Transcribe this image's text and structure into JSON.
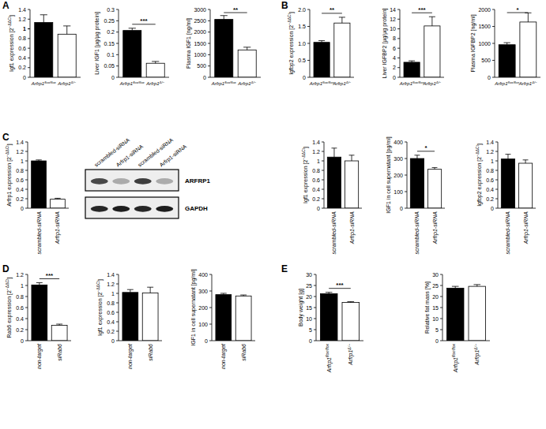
{
  "chart_data": [
    {
      "type": "bar",
      "title": "A",
      "categories": [
        "Arfrp1flox/flox",
        "Arfrp1Δ/−"
      ],
      "values": [
        1.13,
        0.89
      ],
      "errors": [
        0.16,
        0.17
      ],
      "colors": [
        "#000000",
        "#ffffff"
      ],
      "y_label": "Igf1 expression [2−ΔΔCt]",
      "ylim": [
        0,
        1.4
      ],
      "yticks": [
        0,
        0.2,
        0.4,
        0.6,
        0.8,
        1,
        {
          "value": 1,
          "label": "1"
        },
        1.2,
        1.4
      ],
      "annotations": []
    },
    {
      "type": "bar",
      "categories": [
        "Arfrp1flox/flox",
        "Arfrp1Δ/−"
      ],
      "values": [
        0.207,
        0.062
      ],
      "errors": [
        0.01,
        0.008
      ],
      "colors": [
        "#000000",
        "#ffffff"
      ],
      "y_label": "Liver IGF1 [µg/µg protein]",
      "ylim": [
        0,
        0.3
      ],
      "yticks": [
        0,
        0.05,
        0.1,
        0.15,
        0.2,
        0.25,
        0.3
      ],
      "annotations": [
        "***"
      ]
    },
    {
      "type": "bar",
      "categories": [
        "Arfrp1flox/flox",
        "Arfrp1Δ/−"
      ],
      "values": [
        2560,
        1210
      ],
      "errors": [
        170,
        120
      ],
      "colors": [
        "#000000",
        "#ffffff"
      ],
      "y_label": "Plasma IGF1 [ng/ml]",
      "ylim": [
        0,
        3000
      ],
      "yticks": [
        0,
        500,
        1000,
        1500,
        2000,
        2500,
        3000
      ],
      "annotations": [
        "**"
      ]
    },
    {
      "type": "bar",
      "title": "B",
      "categories": [
        "Arfrp1flox/flox",
        "Arfrp1Δ/−"
      ],
      "values": [
        1.03,
        1.6
      ],
      "errors": [
        0.05,
        0.17
      ],
      "colors": [
        "#000000",
        "#ffffff"
      ],
      "y_label": "Igfbp2 expression [2−ΔΔCt]",
      "ylim": [
        0,
        2
      ],
      "yticks": [
        0,
        0.5,
        {
          "value": 1,
          "label": "1.0"
        },
        1.5,
        {
          "value": 2,
          "label": "2.0"
        }
      ],
      "annotations": [
        "**"
      ]
    },
    {
      "type": "bar",
      "categories": [
        "Arfrp1flox/flox",
        "Arfrp1Δ/−"
      ],
      "values": [
        3.1,
        10.6
      ],
      "errors": [
        0.3,
        1.9
      ],
      "colors": [
        "#000000",
        "#ffffff"
      ],
      "y_label": "Liver IGFBP2 [µg/µg protein]",
      "ylim": [
        0,
        14
      ],
      "yticks": [
        0,
        2,
        4,
        6,
        8,
        10,
        12,
        14
      ],
      "annotations": [
        "***"
      ]
    },
    {
      "type": "bar",
      "categories": [
        "Arfrp1flox/flox",
        "Arfrp1Δ/−"
      ],
      "values": [
        960,
        1630
      ],
      "errors": [
        60,
        270
      ],
      "colors": [
        "#000000",
        "#ffffff"
      ],
      "y_label": "Plasma IGFBP2 [ng/ml]",
      "ylim": [
        0,
        2000
      ],
      "yticks": [
        0,
        500,
        1000,
        1500,
        2000
      ],
      "annotations": [
        "*"
      ]
    },
    {
      "type": "bar",
      "title": "C",
      "categories": [
        "scrambled-siRNA",
        "Arfrp1-siRNA"
      ],
      "values": [
        1.0,
        0.19
      ],
      "errors": [
        0.02,
        0.02
      ],
      "colors": [
        "#000000",
        "#ffffff"
      ],
      "y_label": "Arfrp1 expression [2−ΔΔCt]",
      "ylim": [
        0,
        1.4
      ],
      "yticks": [
        0,
        0.2,
        0.4,
        0.6,
        0.8,
        1,
        1.2,
        1.4
      ],
      "annotations": []
    },
    {
      "type": "blot",
      "categories": [
        "scrambled-siRNA",
        "Arfrp1-siRNA",
        "scrambled-siRNA",
        "Arfrp1-siRNA"
      ],
      "series": [
        {
          "name": "ARFRP1",
          "values": [
            0.75,
            0.3,
            0.8,
            0.3
          ]
        },
        {
          "name": "GAPDH",
          "values": [
            0.9,
            0.95,
            0.9,
            0.95
          ]
        }
      ]
    },
    {
      "type": "bar",
      "categories": [
        "scrambled-siRNA",
        "Arfrp1-siRNA"
      ],
      "values": [
        1.08,
        1.0
      ],
      "errors": [
        0.19,
        0.12
      ],
      "colors": [
        "#000000",
        "#ffffff"
      ],
      "y_label": "Igf1 expression [2−ΔΔCt]",
      "ylim": [
        0,
        1.4
      ],
      "yticks": [
        0,
        0.2,
        0.4,
        0.6,
        0.8,
        1,
        1.2,
        1.4
      ],
      "annotations": []
    },
    {
      "type": "bar",
      "categories": [
        "scrambled-siRNA",
        "Arfrp1-siRNA"
      ],
      "values": [
        300,
        235
      ],
      "errors": [
        20,
        10
      ],
      "colors": [
        "#000000",
        "#ffffff"
      ],
      "y_label": "IGF1 in cell supernatant [pg/ml]",
      "ylim": [
        0,
        400
      ],
      "yticks": [
        0,
        100,
        200,
        300,
        400
      ],
      "annotations": [
        "*"
      ]
    },
    {
      "type": "bar",
      "categories": [
        "scrambled-siRNA",
        "Arfrp1-siRNA"
      ],
      "values": [
        1.04,
        0.95
      ],
      "errors": [
        0.1,
        0.07
      ],
      "colors": [
        "#000000",
        "#ffffff"
      ],
      "y_label": "Igfbp2 expression [2−ΔΔCt]",
      "ylim": [
        0,
        1.4
      ],
      "yticks": [
        0,
        0.2,
        0.4,
        0.6,
        0.8,
        1,
        1.2,
        1.4
      ],
      "annotations": []
    },
    {
      "type": "bar",
      "title": "D",
      "categories": [
        "non-target",
        "siRab6"
      ],
      "values": [
        1.01,
        0.28
      ],
      "errors": [
        0.04,
        0.02
      ],
      "colors": [
        "#000000",
        "#ffffff"
      ],
      "y_label": "Rab6 expression [2−ΔΔCt]",
      "ylim": [
        0,
        1.2
      ],
      "yticks": [
        0,
        0.2,
        0.4,
        0.6,
        0.8,
        1,
        1.2
      ],
      "annotations": [
        "***"
      ]
    },
    {
      "type": "bar",
      "categories": [
        "non-target",
        "siRab6"
      ],
      "values": [
        1.02,
        1.01
      ],
      "errors": [
        0.06,
        0.12
      ],
      "colors": [
        "#000000",
        "#ffffff"
      ],
      "y_label": "Igf1 expression [2−ΔΔCt]",
      "ylim": [
        0,
        1.4
      ],
      "yticks": [
        0,
        0.2,
        0.4,
        0.6,
        0.8,
        1,
        1.2,
        1.4
      ],
      "annotations": []
    },
    {
      "type": "bar",
      "categories": [
        "non-target",
        "siRab6"
      ],
      "values": [
        278,
        270
      ],
      "errors": [
        8,
        6
      ],
      "colors": [
        "#000000",
        "#ffffff"
      ],
      "y_label": "IGF1 in cell supernatant [pg/ml]",
      "ylim": [
        0,
        400
      ],
      "yticks": [
        0,
        100,
        200,
        300,
        400
      ],
      "annotations": []
    },
    {
      "type": "bar",
      "title": "E",
      "categories": [
        "Arfrp1flox/flox",
        "Arfrp1Δ/−"
      ],
      "values": [
        21.3,
        17.3
      ],
      "errors": [
        0.6,
        0.4
      ],
      "colors": [
        "#000000",
        "#ffffff"
      ],
      "y_label": "Body weight [g]",
      "ylim": [
        0,
        30
      ],
      "yticks": [
        0,
        5,
        10,
        15,
        20,
        25,
        30
      ],
      "annotations": [
        "***"
      ]
    },
    {
      "type": "bar",
      "categories": [
        "Arfrp1flox/flox",
        "Arfrp1Δ/−"
      ],
      "values": [
        23.8,
        24.6
      ],
      "errors": [
        0.8,
        0.8
      ],
      "colors": [
        "#000000",
        "#ffffff"
      ],
      "y_label": "Relative fat mass [%]",
      "ylim": [
        0,
        30
      ],
      "yticks": [
        0,
        5,
        10,
        15,
        20,
        25,
        30
      ],
      "annotations": []
    }
  ]
}
